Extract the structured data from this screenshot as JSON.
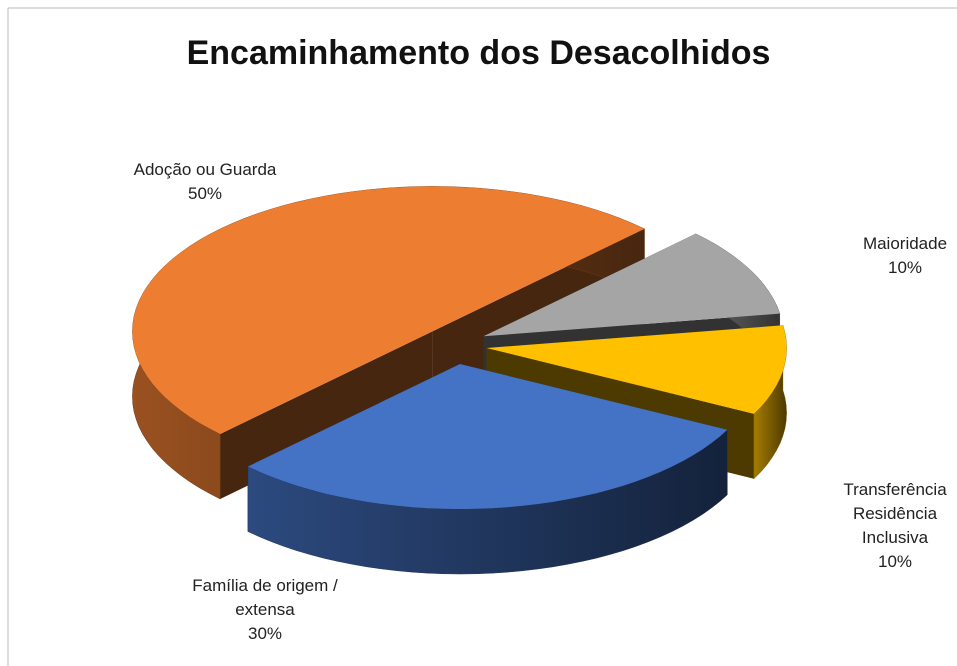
{
  "chart_data": {
    "type": "pie",
    "title": "Encaminhamento dos Desacolhidos",
    "categories": [
      "Adoção ou Guarda",
      "Maioridade",
      "Transferência Residência Inclusiva",
      "Família de origem / extensa"
    ],
    "values": [
      50,
      10,
      10,
      30
    ],
    "value_labels": [
      "50%",
      "10%",
      "10%",
      "30%"
    ],
    "colors": [
      "#ED7D31",
      "#A5A5A5",
      "#FFC000",
      "#4472C4"
    ]
  }
}
